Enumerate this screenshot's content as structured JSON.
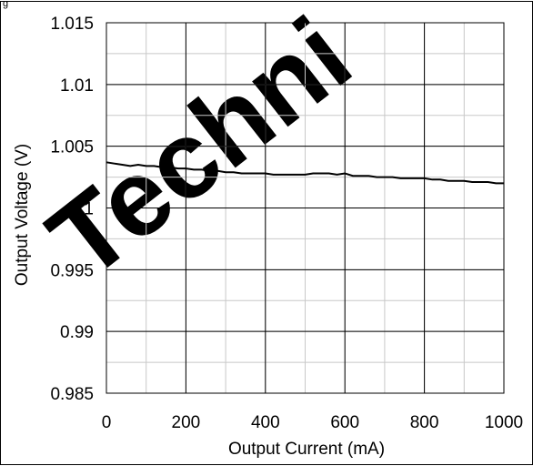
{
  "figure": {
    "caption": "g"
  },
  "watermark": {
    "text": "Techni"
  },
  "chart_data": {
    "type": "line",
    "title": "",
    "xlabel": "Output Current (mA)",
    "ylabel": "Output Voltage (V)",
    "xlim": [
      0,
      1000
    ],
    "ylim": [
      0.985,
      1.015
    ],
    "x_ticks": [
      "0",
      "200",
      "400",
      "600",
      "800",
      "1000"
    ],
    "y_ticks": [
      "1.015",
      "1.01",
      "1.005",
      "1",
      "0.995",
      "0.99",
      "0.985"
    ],
    "x_tick_values": [
      0,
      200,
      400,
      600,
      800,
      1000
    ],
    "y_tick_values": [
      1.015,
      1.01,
      1.005,
      1,
      0.995,
      0.99,
      0.985
    ],
    "x_minor_step": 100,
    "y_minor_step": 0.0025,
    "grid": true,
    "legend": "none",
    "line_color": "#000000",
    "series": [
      {
        "x": [
          0,
          20,
          40,
          60,
          80,
          100,
          120,
          140,
          160,
          180,
          200,
          220,
          240,
          260,
          280,
          300,
          320,
          340,
          360,
          380,
          400,
          420,
          440,
          460,
          480,
          500,
          520,
          540,
          560,
          580,
          600,
          620,
          640,
          660,
          680,
          700,
          720,
          740,
          760,
          780,
          800,
          820,
          840,
          860,
          880,
          900,
          920,
          940,
          960,
          980,
          1000
        ],
        "y": [
          1.0037,
          1.0036,
          1.0035,
          1.0034,
          1.0035,
          1.0034,
          1.0034,
          1.0033,
          1.0033,
          1.0032,
          1.0032,
          1.0031,
          1.0031,
          1.003,
          1.003,
          1.0029,
          1.0029,
          1.0028,
          1.0028,
          1.0028,
          1.0028,
          1.0027,
          1.0027,
          1.0027,
          1.0027,
          1.0027,
          1.0028,
          1.0028,
          1.0028,
          1.0027,
          1.0028,
          1.0026,
          1.0026,
          1.0026,
          1.0025,
          1.0025,
          1.0025,
          1.0024,
          1.0024,
          1.0024,
          1.0024,
          1.0023,
          1.0023,
          1.0022,
          1.0022,
          1.0022,
          1.0021,
          1.0021,
          1.0021,
          1.002,
          1.002
        ]
      }
    ]
  }
}
